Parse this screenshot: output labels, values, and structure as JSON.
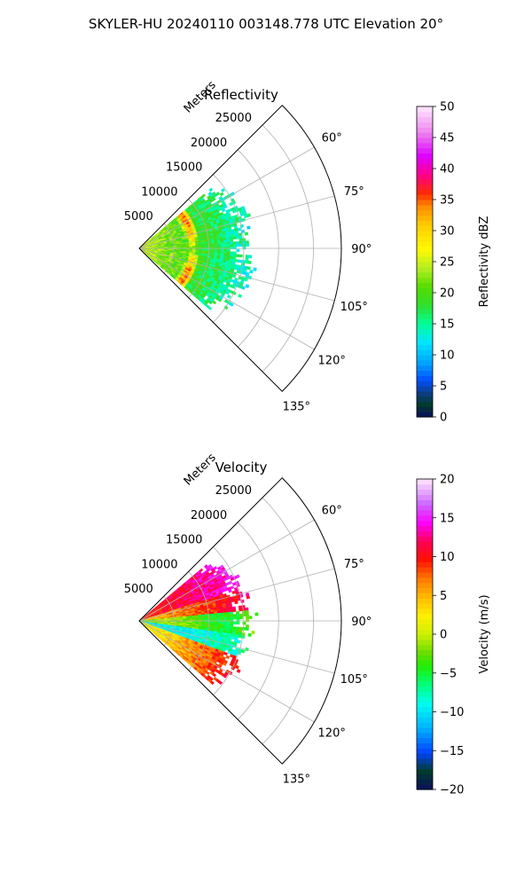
{
  "figure_title": "SKYLER-HU  20240110  003148.778 UTC Elevation 20°",
  "chart_data": [
    {
      "type": "heatmap",
      "subtype": "polar-sector (radar PPI)",
      "title": "Reflectivity",
      "radial_axis_label": "Meters",
      "radial_ticks": [
        5000,
        10000,
        15000,
        20000,
        25000
      ],
      "radial_tick_labels": [
        "5000",
        "10000",
        "15000",
        "20000",
        "25000"
      ],
      "rlim": [
        0,
        29000
      ],
      "theta_range_deg": [
        45,
        135
      ],
      "theta_direction": "clockwise, 0° = north",
      "angular_ticks": [
        60,
        75,
        90,
        105,
        120,
        135
      ],
      "angular_tick_labels": [
        "60°",
        "75°",
        "90°",
        "105°",
        "120°",
        "135°"
      ],
      "data_extent": {
        "theta_deg": [
          50,
          130
        ],
        "range_m": [
          0,
          16000
        ]
      },
      "grid": true,
      "colorbar": {
        "label": "Reflectivity dBZ",
        "vmin": 0,
        "vmax": 50,
        "ticks": [
          0,
          5,
          10,
          15,
          20,
          25,
          30,
          35,
          40,
          45,
          50
        ],
        "tick_labels": [
          "0",
          "5",
          "10",
          "15",
          "20",
          "25",
          "30",
          "35",
          "40",
          "45",
          "50"
        ]
      },
      "description_values": {
        "near_range_dbz": [
          20,
          28
        ],
        "ring_peak_dbz": [
          33,
          38
        ],
        "ring_peak_range_m": [
          6500,
          8500
        ],
        "far_edge_dbz": [
          12,
          22
        ]
      }
    },
    {
      "type": "heatmap",
      "subtype": "polar-sector (radar PPI)",
      "title": "Velocity",
      "radial_axis_label": "Meters",
      "radial_ticks": [
        5000,
        10000,
        15000,
        20000,
        25000
      ],
      "radial_tick_labels": [
        "5000",
        "10000",
        "15000",
        "20000",
        "25000"
      ],
      "rlim": [
        0,
        29000
      ],
      "theta_range_deg": [
        45,
        135
      ],
      "theta_direction": "clockwise, 0° = north",
      "angular_ticks": [
        60,
        75,
        90,
        105,
        120,
        135
      ],
      "angular_tick_labels": [
        "60°",
        "75°",
        "90°",
        "105°",
        "120°",
        "135°"
      ],
      "data_extent": {
        "theta_deg": [
          50,
          130
        ],
        "range_m": [
          0,
          16000
        ]
      },
      "grid": true,
      "colorbar": {
        "label": "Velocity (m/s)",
        "vmin": -20,
        "vmax": 20,
        "ticks": [
          -20,
          -15,
          -10,
          -5,
          0,
          5,
          10,
          15,
          20
        ],
        "tick_labels": [
          "−20",
          "−15",
          "−10",
          "−5",
          "0",
          "5",
          "10",
          "15",
          "20"
        ]
      },
      "description_values": {
        "northern_sector_ms": [
          8,
          15
        ],
        "center_ms": [
          -6,
          2
        ],
        "southern_band_ms": [
          -12,
          -6
        ]
      }
    }
  ],
  "colors": {
    "grid": "#b0b0b0",
    "frame": "#000000",
    "background": "#ffffff"
  }
}
